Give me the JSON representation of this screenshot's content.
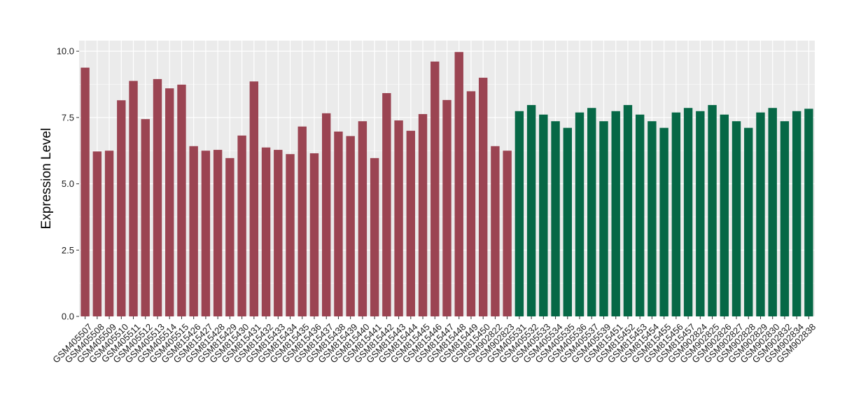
{
  "chart_data": {
    "type": "bar",
    "title": "",
    "xlabel": "",
    "ylabel": "Expression Level",
    "ylim": [
      0,
      10.4
    ],
    "yticks": [
      "0.0",
      "2.5",
      "5.0",
      "7.5",
      "10.0"
    ],
    "ytick_values": [
      0,
      2.5,
      5.0,
      7.5,
      10.0
    ],
    "grid": true,
    "legend": "none",
    "colors": {
      "group1": "#9b4452",
      "group2": "#066846",
      "panel": "#ebebeb",
      "grid": "#ffffff"
    },
    "categories": [
      "GSM405507",
      "GSM405508",
      "GSM405509",
      "GSM405510",
      "GSM405511",
      "GSM405512",
      "GSM405513",
      "GSM405514",
      "GSM405515",
      "GSM815426",
      "GSM815427",
      "GSM815428",
      "GSM815429",
      "GSM815430",
      "GSM815431",
      "GSM815432",
      "GSM815433",
      "GSM815434",
      "GSM815435",
      "GSM815436",
      "GSM815437",
      "GSM815438",
      "GSM815439",
      "GSM815440",
      "GSM815441",
      "GSM815442",
      "GSM815443",
      "GSM815444",
      "GSM815445",
      "GSM815446",
      "GSM815447",
      "GSM815448",
      "GSM815449",
      "GSM815450",
      "GSM902822",
      "GSM902823",
      "GSM405531",
      "GSM405532",
      "GSM405533",
      "GSM405534",
      "GSM405535",
      "GSM405536",
      "GSM405537",
      "GSM405539",
      "GSM815451",
      "GSM815452",
      "GSM815453",
      "GSM815454",
      "GSM815455",
      "GSM815456",
      "GSM815457",
      "GSM902824",
      "GSM902825",
      "GSM902826",
      "GSM902827",
      "GSM902828",
      "GSM902829",
      "GSM902830",
      "GSM902832",
      "GSM902834",
      "GSM902838"
    ],
    "values": [
      9.38,
      6.22,
      6.25,
      8.15,
      8.88,
      7.44,
      8.95,
      8.6,
      8.74,
      6.42,
      6.25,
      6.28,
      5.97,
      6.82,
      8.86,
      6.37,
      6.28,
      6.12,
      7.16,
      6.15,
      7.66,
      6.97,
      6.8,
      7.36,
      5.97,
      8.42,
      7.39,
      7.0,
      7.63,
      9.61,
      8.16,
      9.97,
      8.49,
      9.0,
      6.42,
      6.25,
      7.74,
      7.97,
      7.61,
      7.36,
      7.11,
      7.69,
      7.86,
      7.36,
      7.74,
      7.97,
      7.61,
      7.36,
      7.11,
      7.69,
      7.86,
      7.74,
      7.97,
      7.61,
      7.36,
      7.11,
      7.69,
      7.86,
      7.36,
      7.74,
      7.83
    ],
    "groups": [
      1,
      1,
      1,
      1,
      1,
      1,
      1,
      1,
      1,
      1,
      1,
      1,
      1,
      1,
      1,
      1,
      1,
      1,
      1,
      1,
      1,
      1,
      1,
      1,
      1,
      1,
      1,
      1,
      1,
      1,
      1,
      1,
      1,
      1,
      1,
      1,
      2,
      2,
      2,
      2,
      2,
      2,
      2,
      2,
      2,
      2,
      2,
      2,
      2,
      2,
      2,
      2,
      2,
      2,
      2,
      2,
      2,
      2,
      2,
      2,
      2
    ]
  }
}
